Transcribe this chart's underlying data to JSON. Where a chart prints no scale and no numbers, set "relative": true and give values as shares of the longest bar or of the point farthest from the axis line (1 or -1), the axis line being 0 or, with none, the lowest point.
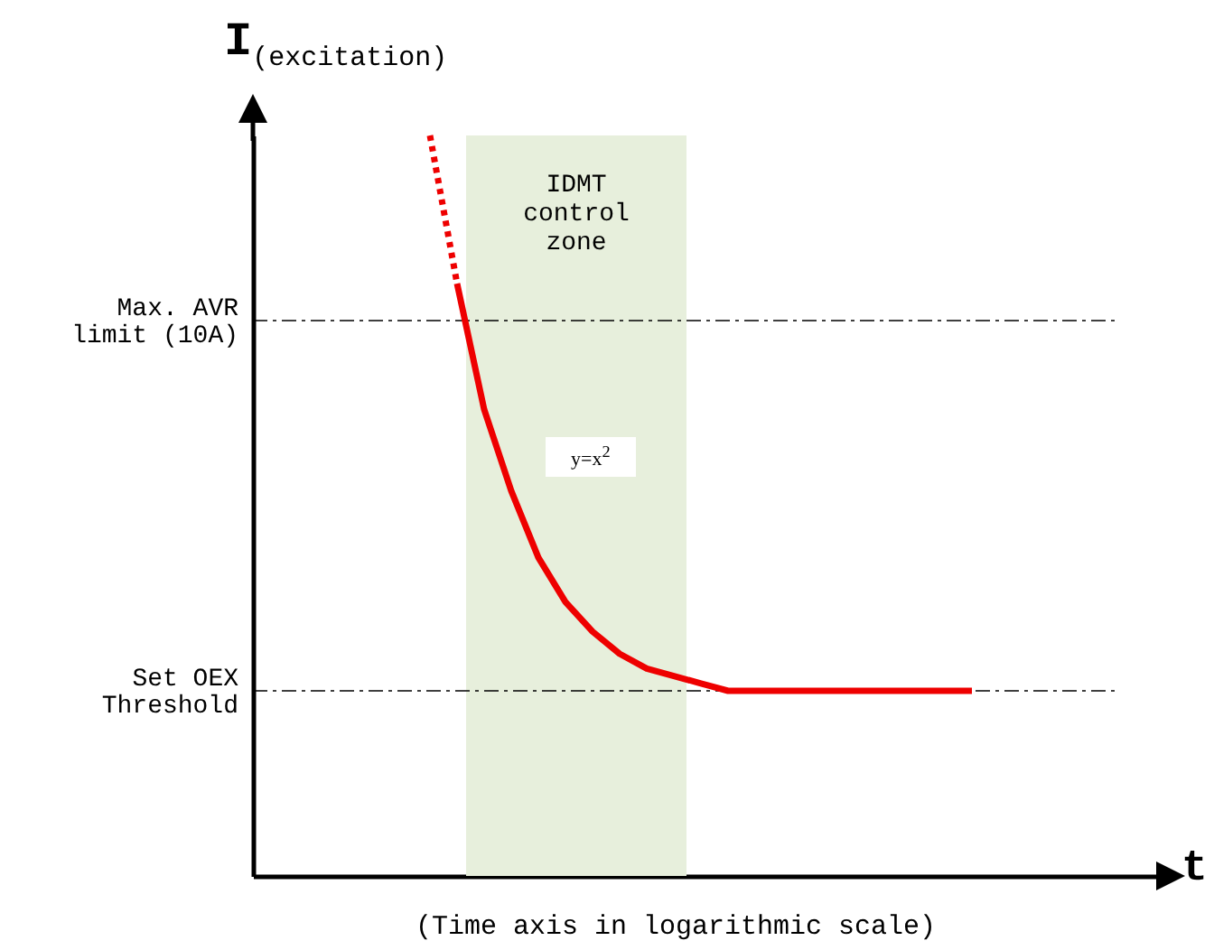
{
  "chart_data": {
    "type": "line",
    "relative": true,
    "xlabel": "t",
    "ylabel": "I$_{(excitation)}$",
    "categories": [
      null,
      null,
      null,
      null,
      null,
      null,
      null,
      null,
      null,
      null,
      null,
      null,
      null,
      null,
      null,
      null,
      null,
      null,
      null,
      null,
      null
    ],
    "series": [
      {
        "color": "#ee0000",
        "line_style": "dotted",
        "values": [
          1.0,
          0.8,
          null,
          null,
          null,
          null,
          null,
          null,
          null,
          null,
          null,
          null,
          null,
          null,
          null,
          null,
          null,
          null,
          null,
          null,
          null
        ]
      },
      {
        "color": "#ee0000",
        "line_style": "solid",
        "values": [
          null,
          0.8,
          0.63,
          0.52,
          0.43,
          0.37,
          0.33,
          0.3,
          0.28,
          0.27,
          0.26,
          0.25,
          0.25,
          0.25,
          0.25,
          0.25,
          0.25,
          0.25,
          0.25,
          0.25,
          0.25
        ]
      }
    ],
    "ref_lines": [
      {
        "axis": "y",
        "value": 0.75,
        "label": "Max. AVR limit (10A)",
        "line_style": "dashdot"
      },
      {
        "axis": "y",
        "value": 0.25,
        "label": "Set OEX Threshold",
        "line_style": "dashdot"
      }
    ],
    "annotations": [
      "IDMT control zone",
      "y=x$^{2}$",
      "(Time axis in logarithmic scale)"
    ]
  }
}
